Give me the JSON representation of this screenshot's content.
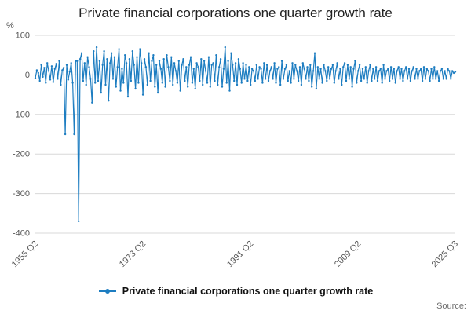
{
  "title": "Private financial corporations one quarter growth rate",
  "legend": {
    "label": "Private financial corporations one quarter growth rate"
  },
  "source": {
    "label": "Source:"
  },
  "colors": {
    "line": "#1d7dc1",
    "grid": "#d8d8d8",
    "axis_text": "#555555",
    "title_text": "#222222",
    "source_text": "#6e6e6e"
  },
  "chart_data": {
    "type": "line",
    "title": "Private financial corporations one quarter growth rate",
    "xlabel": "",
    "ylabel": "%",
    "ylim": [
      -400,
      100
    ],
    "yticks": [
      100,
      0,
      -100,
      -200,
      -300,
      -400
    ],
    "grid": "horizontal",
    "legend_position": "bottom",
    "frequency": "quarterly",
    "x_start": "1955 Q2",
    "x_end": "2025 Q3",
    "xticks": [
      {
        "index": 0,
        "label": "1955 Q2"
      },
      {
        "index": 72,
        "label": "1973 Q2"
      },
      {
        "index": 144,
        "label": "1991 Q2"
      },
      {
        "index": 216,
        "label": "2009 Q2"
      },
      {
        "index": 281,
        "label": "2025 Q3"
      }
    ],
    "series_name": "Private financial corporations one quarter growth rate",
    "values": [
      -8,
      12,
      5,
      -15,
      25,
      -5,
      18,
      -20,
      30,
      10,
      -12,
      22,
      -18,
      15,
      28,
      -10,
      35,
      -25,
      12,
      18,
      -150,
      25,
      -12,
      8,
      30,
      -20,
      -150,
      35,
      35,
      -370,
      40,
      55,
      -15,
      30,
      -25,
      45,
      20,
      -10,
      -70,
      60,
      -20,
      70,
      -15,
      35,
      -45,
      25,
      60,
      -25,
      40,
      -65,
      30,
      55,
      -10,
      45,
      -30,
      20,
      65,
      -40,
      15,
      -20,
      50,
      30,
      -55,
      40,
      -15,
      60,
      25,
      -35,
      45,
      -20,
      65,
      30,
      -50,
      40,
      20,
      -25,
      55,
      -15,
      35,
      50,
      -30,
      25,
      -45,
      35,
      15,
      -20,
      40,
      -30,
      50,
      20,
      -15,
      45,
      -25,
      30,
      10,
      -20,
      35,
      -40,
      25,
      40,
      -15,
      20,
      -30,
      25,
      45,
      -20,
      15,
      -35,
      30,
      20,
      -15,
      40,
      -25,
      35,
      10,
      -20,
      45,
      -30,
      25,
      30,
      -15,
      50,
      -25,
      20,
      40,
      -30,
      15,
      70,
      -20,
      35,
      -40,
      55,
      25,
      -15,
      30,
      -25,
      40,
      15,
      -20,
      30,
      -10,
      25,
      -15,
      20,
      -25,
      15,
      10,
      -15,
      25,
      -10,
      20,
      15,
      -20,
      30,
      -10,
      25,
      -15,
      10,
      20,
      -10,
      30,
      -20,
      15,
      20,
      -25,
      35,
      -10,
      15,
      25,
      -15,
      10,
      -20,
      30,
      -10,
      25,
      10,
      -15,
      20,
      -25,
      30,
      15,
      -10,
      20,
      -15,
      25,
      -30,
      10,
      55,
      -35,
      20,
      -10,
      15,
      -20,
      25,
      10,
      -15,
      20,
      -10,
      15,
      25,
      -20,
      10,
      30,
      -10,
      15,
      -25,
      20,
      30,
      -15,
      25,
      -10,
      20,
      -30,
      15,
      35,
      -20,
      10,
      25,
      -15,
      15,
      -10,
      20,
      -20,
      10,
      25,
      -15,
      15,
      -10,
      20,
      -15,
      10,
      15,
      -20,
      25,
      -10,
      10,
      15,
      -15,
      20,
      -10,
      15,
      -20,
      10,
      20,
      -10,
      15,
      -15,
      10,
      20,
      -10,
      15,
      -15,
      10,
      20,
      -10,
      15,
      -10,
      10,
      15,
      -15,
      20,
      -10,
      15,
      10,
      -15,
      15,
      -10,
      20,
      -10,
      10,
      -15,
      10,
      15,
      -10,
      10,
      -10,
      15,
      10,
      -10,
      10,
      5,
      8
    ]
  }
}
